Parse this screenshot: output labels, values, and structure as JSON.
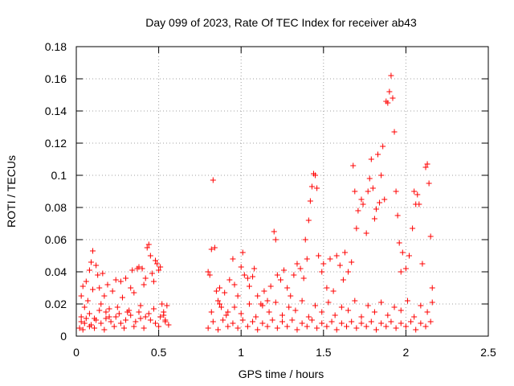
{
  "chart_data": {
    "type": "scatter",
    "title": "Day 099 of 2023, Rate Of TEC Index for receiver ab43",
    "xlabel": "GPS time / hours",
    "ylabel": "ROTI / TECUs",
    "xlim": [
      0,
      2.5
    ],
    "ylim": [
      0,
      0.18
    ],
    "xticks": [
      0,
      0.5,
      1,
      1.5,
      2,
      2.5
    ],
    "xtick_labels": [
      "0",
      "0.5",
      "1",
      "1.5",
      "2",
      "2.5"
    ],
    "yticks": [
      0,
      0.02,
      0.04,
      0.06,
      0.08,
      0.1,
      0.12,
      0.14,
      0.16,
      0.18
    ],
    "ytick_labels": [
      "0",
      "0.02",
      "0.04",
      "0.06",
      "0.08",
      "0.1",
      "0.12",
      "0.14",
      "0.16",
      "0.18"
    ],
    "grid": true,
    "marker": "+",
    "color": "#ff0000",
    "series": [
      {
        "points": [
          [
            0.02,
            0.005
          ],
          [
            0.03,
            0.012
          ],
          [
            0.03,
            0.025
          ],
          [
            0.04,
            0.031
          ],
          [
            0.05,
            0.018
          ],
          [
            0.05,
            0.008
          ],
          [
            0.06,
            0.034
          ],
          [
            0.07,
            0.022
          ],
          [
            0.08,
            0.041
          ],
          [
            0.08,
            0.006
          ],
          [
            0.09,
            0.046
          ],
          [
            0.1,
            0.053
          ],
          [
            0.1,
            0.029
          ],
          [
            0.11,
            0.011
          ],
          [
            0.12,
            0.044
          ],
          [
            0.13,
            0.038
          ],
          [
            0.14,
            0.03
          ],
          [
            0.15,
            0.02
          ],
          [
            0.16,
            0.039
          ],
          [
            0.17,
            0.025
          ],
          [
            0.18,
            0.015
          ],
          [
            0.19,
            0.032
          ],
          [
            0.2,
            0.012
          ],
          [
            0.22,
            0.028
          ],
          [
            0.24,
            0.035
          ],
          [
            0.25,
            0.018
          ],
          [
            0.27,
            0.034
          ],
          [
            0.28,
            0.024
          ],
          [
            0.3,
            0.036
          ],
          [
            0.31,
            0.015
          ],
          [
            0.33,
            0.03
          ],
          [
            0.34,
            0.041
          ],
          [
            0.35,
            0.027
          ],
          [
            0.37,
            0.042
          ],
          [
            0.38,
            0.043
          ],
          [
            0.39,
            0.019
          ],
          [
            0.4,
            0.042
          ],
          [
            0.41,
            0.032
          ],
          [
            0.42,
            0.036
          ],
          [
            0.43,
            0.055
          ],
          [
            0.44,
            0.057
          ],
          [
            0.45,
            0.05
          ],
          [
            0.46,
            0.039
          ],
          [
            0.47,
            0.034
          ],
          [
            0.48,
            0.047
          ],
          [
            0.49,
            0.045
          ],
          [
            0.5,
            0.041
          ],
          [
            0.51,
            0.043
          ],
          [
            0.52,
            0.02
          ],
          [
            0.53,
            0.015
          ],
          [
            0.54,
            0.01
          ],
          [
            0.55,
            0.019
          ],
          [
            0.03,
            0.009
          ],
          [
            0.06,
            0.011
          ],
          [
            0.09,
            0.007
          ],
          [
            0.12,
            0.01
          ],
          [
            0.15,
            0.008
          ],
          [
            0.18,
            0.011
          ],
          [
            0.21,
            0.009
          ],
          [
            0.24,
            0.012
          ],
          [
            0.27,
            0.008
          ],
          [
            0.3,
            0.01
          ],
          [
            0.33,
            0.013
          ],
          [
            0.36,
            0.009
          ],
          [
            0.39,
            0.011
          ],
          [
            0.42,
            0.012
          ],
          [
            0.45,
            0.01
          ],
          [
            0.48,
            0.008
          ],
          [
            0.51,
            0.012
          ],
          [
            0.54,
            0.009
          ],
          [
            0.04,
            0.004
          ],
          [
            0.08,
            0.014
          ],
          [
            0.11,
            0.005
          ],
          [
            0.14,
            0.016
          ],
          [
            0.17,
            0.004
          ],
          [
            0.2,
            0.017
          ],
          [
            0.23,
            0.006
          ],
          [
            0.26,
            0.014
          ],
          [
            0.29,
            0.005
          ],
          [
            0.32,
            0.016
          ],
          [
            0.35,
            0.006
          ],
          [
            0.38,
            0.015
          ],
          [
            0.41,
            0.005
          ],
          [
            0.44,
            0.014
          ],
          [
            0.47,
            0.017
          ],
          [
            0.5,
            0.006
          ],
          [
            0.53,
            0.013
          ],
          [
            0.56,
            0.007
          ],
          [
            0.8,
            0.04
          ],
          [
            0.81,
            0.038
          ],
          [
            0.82,
            0.054
          ],
          [
            0.83,
            0.097
          ],
          [
            0.84,
            0.055
          ],
          [
            0.85,
            0.028
          ],
          [
            0.86,
            0.022
          ],
          [
            0.87,
            0.03
          ],
          [
            0.88,
            0.018
          ],
          [
            0.9,
            0.027
          ],
          [
            0.92,
            0.015
          ],
          [
            0.93,
            0.035
          ],
          [
            0.95,
            0.048
          ],
          [
            0.96,
            0.032
          ],
          [
            0.98,
            0.025
          ],
          [
            1.0,
            0.043
          ],
          [
            1.01,
            0.052
          ],
          [
            1.02,
            0.038
          ],
          [
            1.04,
            0.036
          ],
          [
            1.05,
            0.031
          ],
          [
            1.07,
            0.037
          ],
          [
            1.08,
            0.042
          ],
          [
            1.1,
            0.025
          ],
          [
            1.12,
            0.02
          ],
          [
            1.14,
            0.028
          ],
          [
            1.16,
            0.022
          ],
          [
            1.18,
            0.031
          ],
          [
            1.2,
            0.065
          ],
          [
            1.21,
            0.06
          ],
          [
            1.22,
            0.038
          ],
          [
            1.24,
            0.035
          ],
          [
            1.26,
            0.041
          ],
          [
            1.28,
            0.03
          ],
          [
            1.3,
            0.025
          ],
          [
            1.32,
            0.038
          ],
          [
            1.34,
            0.045
          ],
          [
            1.36,
            0.042
          ],
          [
            1.38,
            0.036
          ],
          [
            1.39,
            0.06
          ],
          [
            1.4,
            0.048
          ],
          [
            1.41,
            0.072
          ],
          [
            1.42,
            0.084
          ],
          [
            1.43,
            0.093
          ],
          [
            1.44,
            0.101
          ],
          [
            1.45,
            0.1
          ],
          [
            1.46,
            0.092
          ],
          [
            1.47,
            0.05
          ],
          [
            1.49,
            0.04
          ],
          [
            1.5,
            0.045
          ],
          [
            1.52,
            0.03
          ],
          [
            1.54,
            0.048
          ],
          [
            1.56,
            0.028
          ],
          [
            1.58,
            0.05
          ],
          [
            1.6,
            0.044
          ],
          [
            1.62,
            0.035
          ],
          [
            1.63,
            0.052
          ],
          [
            1.65,
            0.04
          ],
          [
            1.67,
            0.046
          ],
          [
            1.68,
            0.106
          ],
          [
            1.69,
            0.09
          ],
          [
            1.7,
            0.067
          ],
          [
            1.71,
            0.078
          ],
          [
            1.73,
            0.085
          ],
          [
            1.74,
            0.082
          ],
          [
            1.76,
            0.064
          ],
          [
            1.77,
            0.09
          ],
          [
            1.78,
            0.098
          ],
          [
            1.79,
            0.11
          ],
          [
            1.8,
            0.092
          ],
          [
            1.81,
            0.073
          ],
          [
            1.82,
            0.079
          ],
          [
            1.83,
            0.113
          ],
          [
            1.84,
            0.083
          ],
          [
            1.85,
            0.1
          ],
          [
            1.86,
            0.118
          ],
          [
            1.87,
            0.085
          ],
          [
            1.88,
            0.146
          ],
          [
            1.89,
            0.145
          ],
          [
            1.9,
            0.152
          ],
          [
            1.91,
            0.162
          ],
          [
            1.92,
            0.148
          ],
          [
            1.93,
            0.127
          ],
          [
            1.94,
            0.09
          ],
          [
            1.95,
            0.075
          ],
          [
            1.96,
            0.058
          ],
          [
            1.97,
            0.04
          ],
          [
            1.98,
            0.052
          ],
          [
            2.0,
            0.042
          ],
          [
            2.02,
            0.05
          ],
          [
            2.04,
            0.067
          ],
          [
            2.05,
            0.09
          ],
          [
            2.06,
            0.082
          ],
          [
            2.07,
            0.088
          ],
          [
            2.08,
            0.082
          ],
          [
            2.1,
            0.045
          ],
          [
            2.12,
            0.105
          ],
          [
            2.13,
            0.107
          ],
          [
            2.14,
            0.095
          ],
          [
            2.15,
            0.062
          ],
          [
            2.16,
            0.03
          ],
          [
            0.8,
            0.005
          ],
          [
            0.83,
            0.009
          ],
          [
            0.86,
            0.004
          ],
          [
            0.89,
            0.01
          ],
          [
            0.92,
            0.006
          ],
          [
            0.95,
            0.008
          ],
          [
            0.98,
            0.005
          ],
          [
            1.01,
            0.01
          ],
          [
            1.04,
            0.006
          ],
          [
            1.07,
            0.009
          ],
          [
            1.1,
            0.004
          ],
          [
            1.13,
            0.008
          ],
          [
            1.16,
            0.006
          ],
          [
            1.19,
            0.01
          ],
          [
            1.22,
            0.005
          ],
          [
            1.25,
            0.009
          ],
          [
            1.28,
            0.006
          ],
          [
            1.31,
            0.01
          ],
          [
            1.34,
            0.004
          ],
          [
            1.37,
            0.008
          ],
          [
            1.4,
            0.006
          ],
          [
            1.43,
            0.01
          ],
          [
            1.46,
            0.005
          ],
          [
            1.49,
            0.008
          ],
          [
            1.52,
            0.006
          ],
          [
            1.55,
            0.009
          ],
          [
            1.58,
            0.004
          ],
          [
            1.61,
            0.008
          ],
          [
            1.64,
            0.006
          ],
          [
            1.67,
            0.009
          ],
          [
            1.7,
            0.005
          ],
          [
            1.73,
            0.008
          ],
          [
            1.76,
            0.006
          ],
          [
            1.79,
            0.009
          ],
          [
            1.82,
            0.004
          ],
          [
            1.85,
            0.008
          ],
          [
            1.88,
            0.006
          ],
          [
            1.91,
            0.009
          ],
          [
            1.94,
            0.005
          ],
          [
            1.97,
            0.008
          ],
          [
            2.0,
            0.006
          ],
          [
            2.03,
            0.009
          ],
          [
            2.06,
            0.004
          ],
          [
            2.09,
            0.008
          ],
          [
            2.12,
            0.006
          ],
          [
            2.15,
            0.009
          ],
          [
            0.82,
            0.015
          ],
          [
            0.87,
            0.02
          ],
          [
            0.91,
            0.013
          ],
          [
            0.96,
            0.018
          ],
          [
            1.0,
            0.014
          ],
          [
            1.05,
            0.02
          ],
          [
            1.09,
            0.012
          ],
          [
            1.13,
            0.019
          ],
          [
            1.17,
            0.015
          ],
          [
            1.21,
            0.021
          ],
          [
            1.25,
            0.013
          ],
          [
            1.29,
            0.018
          ],
          [
            1.33,
            0.016
          ],
          [
            1.37,
            0.022
          ],
          [
            1.41,
            0.012
          ],
          [
            1.45,
            0.019
          ],
          [
            1.49,
            0.015
          ],
          [
            1.53,
            0.021
          ],
          [
            1.57,
            0.013
          ],
          [
            1.61,
            0.018
          ],
          [
            1.65,
            0.016
          ],
          [
            1.69,
            0.022
          ],
          [
            1.73,
            0.012
          ],
          [
            1.77,
            0.019
          ],
          [
            1.81,
            0.015
          ],
          [
            1.85,
            0.021
          ],
          [
            1.89,
            0.013
          ],
          [
            1.93,
            0.018
          ],
          [
            1.97,
            0.016
          ],
          [
            2.01,
            0.022
          ],
          [
            2.05,
            0.012
          ],
          [
            2.09,
            0.019
          ],
          [
            2.13,
            0.015
          ],
          [
            2.16,
            0.021
          ]
        ]
      }
    ]
  }
}
